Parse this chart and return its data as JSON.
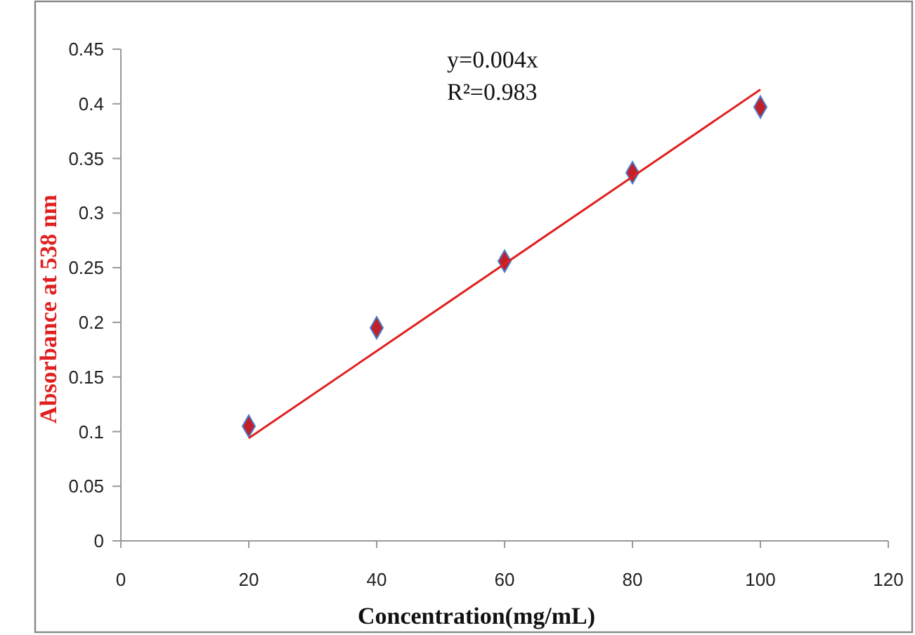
{
  "chart_data": {
    "type": "scatter",
    "xlabel": "Concentration(mg/mL)",
    "ylabel": "Absorbance at 538 nm",
    "annotations": [
      "y=0.004x",
      "R²=0.983"
    ],
    "xlim": [
      0,
      120
    ],
    "xticks": [
      0,
      20,
      40,
      60,
      80,
      100,
      120
    ],
    "ylim": [
      0,
      0.45
    ],
    "yticks": [
      0,
      0.05,
      0.1,
      0.15,
      0.2,
      0.25,
      0.3,
      0.35,
      0.4,
      0.45
    ],
    "grid": false,
    "series": [
      {
        "type": "scatter",
        "color": "#c0202a",
        "marker": "diamond",
        "x": [
          20,
          40,
          60,
          80,
          100
        ],
        "values": [
          0.105,
          0.195,
          0.256,
          0.337,
          0.397
        ]
      },
      {
        "type": "line",
        "color": "#e02020",
        "marker": "none",
        "line_style": "solid",
        "x": [
          20,
          100
        ],
        "values": [
          0.094,
          0.413
        ]
      }
    ]
  }
}
